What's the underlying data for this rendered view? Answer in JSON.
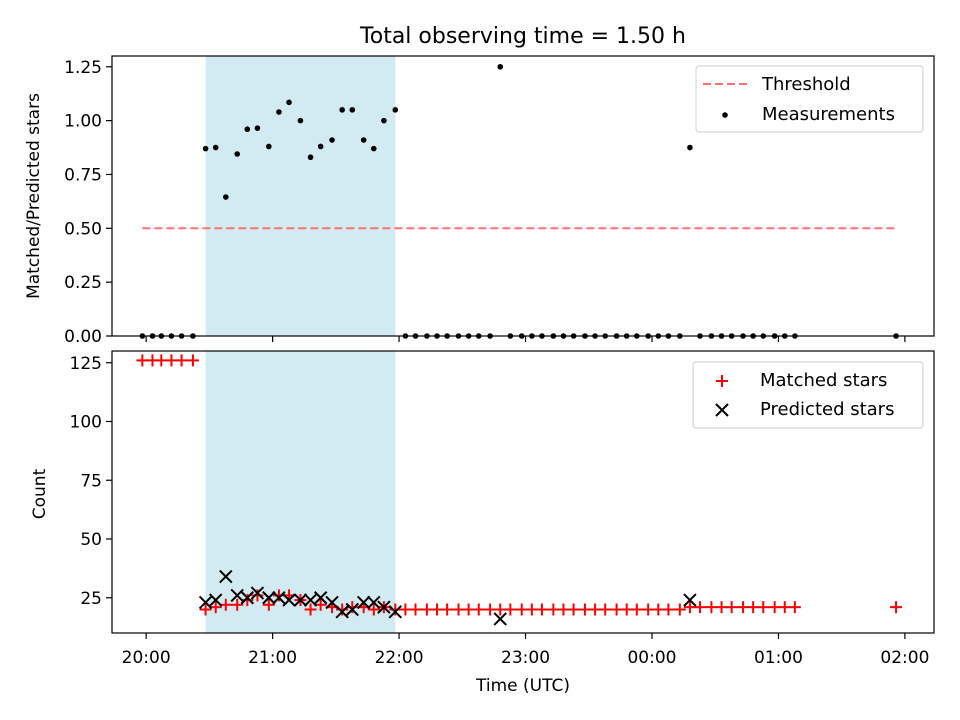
{
  "chart_data": {
    "title": "Total observing time = 1.50 h",
    "x_unit": "hours since 20:00 UTC",
    "x_ticks": [
      0,
      1,
      2,
      3,
      4,
      5,
      6
    ],
    "x_tick_labels": [
      "20:00",
      "21:00",
      "22:00",
      "23:00",
      "00:00",
      "01:00",
      "02:00"
    ],
    "xlim": [
      -0.27,
      6.23
    ],
    "xlabel": "Time (UTC)",
    "shaded_interval": [
      0.47,
      1.97
    ],
    "panels": [
      {
        "type": "scatter",
        "ylabel": "Matched/Predicted stars",
        "ylim": [
          0,
          1.3
        ],
        "y_ticks": [
          0,
          0.25,
          0.5,
          0.75,
          1.0,
          1.25
        ],
        "y_tick_labels": [
          "0.00",
          "0.25",
          "0.50",
          "0.75",
          "1.00",
          "1.25"
        ],
        "threshold": {
          "name": "Threshold",
          "value": 0.5,
          "x_range": [
            -0.03,
            5.93
          ],
          "color": "#ff7070"
        },
        "series": [
          {
            "name": "Measurements",
            "color": "#000000",
            "points": [
              [
                -0.03,
                0
              ],
              [
                0.05,
                0
              ],
              [
                0.12,
                0
              ],
              [
                0.2,
                0
              ],
              [
                0.28,
                0
              ],
              [
                0.37,
                0
              ],
              [
                0.47,
                0.87
              ],
              [
                0.55,
                0.875
              ],
              [
                0.63,
                0.645
              ],
              [
                0.72,
                0.845
              ],
              [
                0.8,
                0.96
              ],
              [
                0.88,
                0.965
              ],
              [
                0.97,
                0.88
              ],
              [
                1.05,
                1.04
              ],
              [
                1.13,
                1.085
              ],
              [
                1.22,
                1.0
              ],
              [
                1.3,
                0.83
              ],
              [
                1.38,
                0.88
              ],
              [
                1.47,
                0.91
              ],
              [
                1.55,
                1.05
              ],
              [
                1.63,
                1.05
              ],
              [
                1.72,
                0.91
              ],
              [
                1.8,
                0.87
              ],
              [
                1.88,
                1.0
              ],
              [
                1.97,
                1.05
              ],
              [
                2.05,
                0
              ],
              [
                2.13,
                0
              ],
              [
                2.22,
                0
              ],
              [
                2.3,
                0
              ],
              [
                2.38,
                0
              ],
              [
                2.47,
                0
              ],
              [
                2.55,
                0
              ],
              [
                2.63,
                0
              ],
              [
                2.72,
                0
              ],
              [
                2.8,
                1.25
              ],
              [
                2.88,
                0
              ],
              [
                2.97,
                0
              ],
              [
                3.05,
                0
              ],
              [
                3.13,
                0
              ],
              [
                3.22,
                0
              ],
              [
                3.3,
                0
              ],
              [
                3.38,
                0
              ],
              [
                3.47,
                0
              ],
              [
                3.55,
                0
              ],
              [
                3.63,
                0
              ],
              [
                3.72,
                0
              ],
              [
                3.8,
                0
              ],
              [
                3.88,
                0
              ],
              [
                3.97,
                0
              ],
              [
                4.05,
                0
              ],
              [
                4.13,
                0
              ],
              [
                4.22,
                0
              ],
              [
                4.3,
                0.875
              ],
              [
                4.38,
                0
              ],
              [
                4.47,
                0
              ],
              [
                4.55,
                0
              ],
              [
                4.63,
                0
              ],
              [
                4.72,
                0
              ],
              [
                4.8,
                0
              ],
              [
                4.88,
                0
              ],
              [
                4.97,
                0
              ],
              [
                5.05,
                0
              ],
              [
                5.13,
                0
              ],
              [
                5.93,
                0
              ]
            ]
          }
        ],
        "legend": [
          "Threshold",
          "Measurements"
        ],
        "legend_position": "top-right"
      },
      {
        "type": "scatter",
        "ylabel": "Count",
        "ylim": [
          10,
          130
        ],
        "y_ticks": [
          25,
          50,
          75,
          100,
          125
        ],
        "y_tick_labels": [
          "25",
          "50",
          "75",
          "100",
          "125"
        ],
        "series": [
          {
            "name": "Matched stars",
            "marker": "plus",
            "color": "#ff0000",
            "points": [
              [
                -0.03,
                126
              ],
              [
                0.05,
                126
              ],
              [
                0.12,
                126
              ],
              [
                0.2,
                126
              ],
              [
                0.28,
                126
              ],
              [
                0.37,
                126
              ],
              [
                0.47,
                20
              ],
              [
                0.55,
                21
              ],
              [
                0.63,
                22
              ],
              [
                0.72,
                22
              ],
              [
                0.8,
                24
              ],
              [
                0.88,
                26
              ],
              [
                0.97,
                22
              ],
              [
                1.05,
                26
              ],
              [
                1.13,
                26
              ],
              [
                1.22,
                24
              ],
              [
                1.3,
                20
              ],
              [
                1.38,
                22
              ],
              [
                1.47,
                21
              ],
              [
                1.55,
                20
              ],
              [
                1.63,
                21
              ],
              [
                1.72,
                21
              ],
              [
                1.8,
                20
              ],
              [
                1.88,
                21
              ],
              [
                1.97,
                20
              ],
              [
                2.05,
                20
              ],
              [
                2.13,
                20
              ],
              [
                2.22,
                20
              ],
              [
                2.3,
                20
              ],
              [
                2.38,
                20
              ],
              [
                2.47,
                20
              ],
              [
                2.55,
                20
              ],
              [
                2.63,
                20
              ],
              [
                2.72,
                20
              ],
              [
                2.8,
                20
              ],
              [
                2.88,
                20
              ],
              [
                2.97,
                20
              ],
              [
                3.05,
                20
              ],
              [
                3.13,
                20
              ],
              [
                3.22,
                20
              ],
              [
                3.3,
                20
              ],
              [
                3.38,
                20
              ],
              [
                3.47,
                20
              ],
              [
                3.55,
                20
              ],
              [
                3.63,
                20
              ],
              [
                3.72,
                20
              ],
              [
                3.8,
                20
              ],
              [
                3.88,
                20
              ],
              [
                3.97,
                20
              ],
              [
                4.05,
                20
              ],
              [
                4.13,
                20
              ],
              [
                4.22,
                20
              ],
              [
                4.3,
                21
              ],
              [
                4.38,
                21
              ],
              [
                4.47,
                21
              ],
              [
                4.55,
                21
              ],
              [
                4.63,
                21
              ],
              [
                4.72,
                21
              ],
              [
                4.8,
                21
              ],
              [
                4.88,
                21
              ],
              [
                4.97,
                21
              ],
              [
                5.05,
                21
              ],
              [
                5.13,
                21
              ],
              [
                5.93,
                21
              ]
            ]
          },
          {
            "name": "Predicted stars",
            "marker": "x",
            "color": "#000000",
            "points": [
              [
                0.47,
                23
              ],
              [
                0.55,
                24
              ],
              [
                0.63,
                34
              ],
              [
                0.72,
                26
              ],
              [
                0.8,
                25
              ],
              [
                0.88,
                27
              ],
              [
                0.97,
                25
              ],
              [
                1.05,
                25
              ],
              [
                1.13,
                24
              ],
              [
                1.22,
                24
              ],
              [
                1.3,
                24
              ],
              [
                1.38,
                25
              ],
              [
                1.47,
                23
              ],
              [
                1.55,
                19
              ],
              [
                1.63,
                20
              ],
              [
                1.72,
                23
              ],
              [
                1.8,
                23
              ],
              [
                1.88,
                21
              ],
              [
                1.97,
                19
              ],
              [
                2.8,
                16
              ],
              [
                4.3,
                24
              ]
            ]
          }
        ],
        "legend": [
          "Matched stars",
          "Predicted stars"
        ],
        "legend_position": "top-right"
      }
    ]
  }
}
